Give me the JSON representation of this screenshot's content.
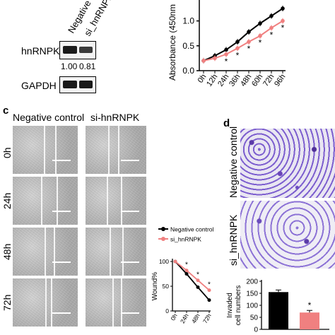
{
  "panel_labels": {
    "c": "c",
    "d": "d"
  },
  "blot": {
    "lanes": [
      "Negative",
      "si_hnRNPK"
    ],
    "rows": [
      "hnRNPK",
      "GAPDH"
    ],
    "ratios": [
      "1.00",
      "0.81"
    ]
  },
  "wound_images": {
    "columns": [
      "Negative control",
      "si-hnRNPK"
    ],
    "rows": [
      "0h",
      "24h",
      "48h",
      "72h"
    ]
  },
  "transwell_images": {
    "rows": [
      "Negative control",
      "si_hnRNPK"
    ]
  },
  "colors": {
    "control": "#000000",
    "knockdown": "#f08080",
    "invasion_purple": "#5b3aa8"
  },
  "chart_data": [
    {
      "type": "line",
      "ylabel": "Absorbance (450nm",
      "ylim": [
        0.0,
        1.25
      ],
      "yticks": [
        "0.0",
        "0.5",
        "1.0"
      ],
      "x": [
        "0h",
        "12h",
        "24h",
        "36h",
        "48h",
        "60h",
        "72h",
        "96h"
      ],
      "series": [
        {
          "name": "Negative control",
          "values": [
            0.2,
            0.3,
            0.42,
            0.58,
            0.78,
            0.95,
            1.1,
            1.25
          ]
        },
        {
          "name": "si_hnRNPK",
          "values": [
            0.2,
            0.25,
            0.33,
            0.45,
            0.58,
            0.7,
            0.86,
            1.0
          ]
        }
      ],
      "annotations": [
        "*",
        "*",
        "*",
        "*",
        "*",
        "*"
      ]
    },
    {
      "type": "line",
      "ylabel": "Wound%",
      "ylim": [
        0,
        100
      ],
      "yticks": [
        "0",
        "50",
        "100"
      ],
      "x": [
        "0h",
        "24h",
        "48h",
        "72h"
      ],
      "series": [
        {
          "name": "Negative control",
          "values": [
            100,
            75,
            48,
            22
          ]
        },
        {
          "name": "si_hnRNPK",
          "values": [
            100,
            82,
            62,
            42
          ]
        }
      ],
      "annotations": [
        "*",
        "*",
        "*"
      ]
    },
    {
      "type": "bar",
      "ylabel": "Invaded cell numbers",
      "ylim": [
        0,
        200
      ],
      "yticks": [
        "0",
        "50",
        "100",
        "150",
        "200"
      ],
      "categories": [
        "Negative control",
        "si_hnRNPK"
      ],
      "values": [
        155,
        70
      ],
      "annotations": [
        "*"
      ]
    }
  ]
}
